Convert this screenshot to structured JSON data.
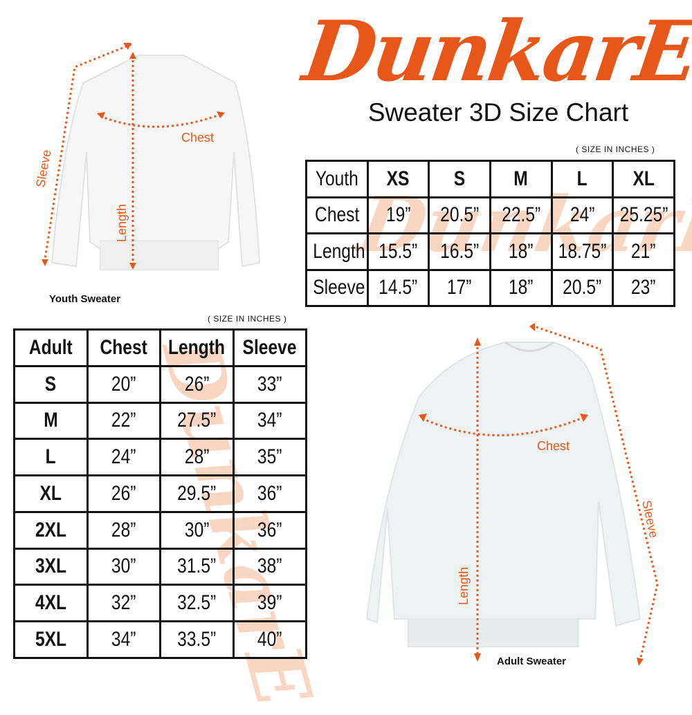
{
  "brand": {
    "logo_text": "DunkarE",
    "accent_color": "#e8571a"
  },
  "title": "Sweater 3D Size Chart",
  "units_note": "( SIZE IN INCHES )",
  "youth_diagram": {
    "caption": "Youth Sweater",
    "labels": {
      "sleeve": "Sleeve",
      "chest": "Chest",
      "length": "Length"
    }
  },
  "adult_diagram": {
    "caption": "Adult Sweater",
    "labels": {
      "sleeve": "Sleeve",
      "chest": "Chest",
      "length": "Length"
    }
  },
  "chart_data": [
    {
      "type": "table",
      "title": "Youth",
      "headers": [
        "Youth",
        "XS",
        "S",
        "M",
        "L",
        "XL"
      ],
      "rows": [
        [
          "Chest",
          "19”",
          "20.5”",
          "22.5”",
          "24”",
          "25.25”"
        ],
        [
          "Length",
          "15.5”",
          "16.5”",
          "18”",
          "18.75”",
          "21”"
        ],
        [
          "Sleeve",
          "14.5”",
          "17”",
          "18”",
          "20.5”",
          "23”"
        ]
      ]
    },
    {
      "type": "table",
      "title": "Adult",
      "headers": [
        "Adult",
        "Chest",
        "Length",
        "Sleeve"
      ],
      "rows": [
        [
          "S",
          "20”",
          "26”",
          "33”"
        ],
        [
          "M",
          "22”",
          "27.5”",
          "34”"
        ],
        [
          "L",
          "24”",
          "28”",
          "35”"
        ],
        [
          "XL",
          "26”",
          "29.5”",
          "36”"
        ],
        [
          "2XL",
          "28”",
          "30”",
          "36”"
        ],
        [
          "3XL",
          "30”",
          "31.5”",
          "38”"
        ],
        [
          "4XL",
          "32”",
          "32.5”",
          "39”"
        ],
        [
          "5XL",
          "34”",
          "33.5”",
          "40”"
        ]
      ]
    }
  ]
}
